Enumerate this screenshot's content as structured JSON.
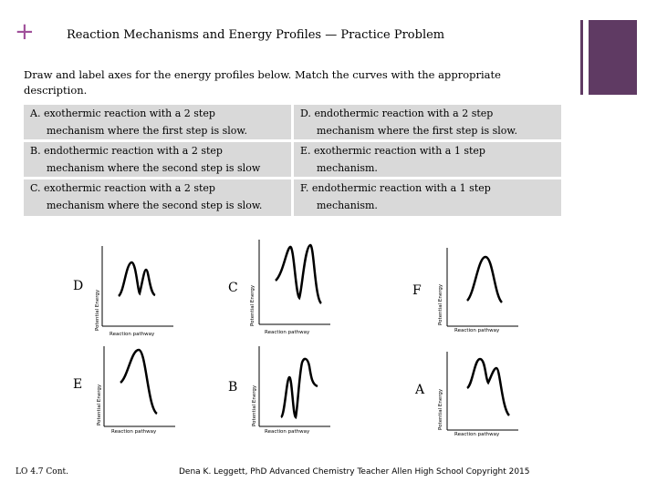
{
  "header": {
    "plus_glyph": "+",
    "title": "Reaction Mechanisms and Energy Profiles — Practice Problem"
  },
  "instructions": "Draw and label axes for the energy profiles below.  Match the curves with the appropriate description.",
  "descriptions": [
    {
      "letter": "A.",
      "line1": "exothermic reaction with a 2 step",
      "line2": "mechanism where the first step is slow."
    },
    {
      "letter": "B.",
      "line1": "endothermic reaction with a 2 step",
      "line2": "mechanism where the second step is slow"
    },
    {
      "letter": "C.",
      "line1": "exothermic reaction with a 2 step",
      "line2": "mechanism where the second step is slow."
    },
    {
      "letter": "D.",
      "line1": "endothermic reaction with a 2 step",
      "line2": "mechanism where the first step is slow."
    },
    {
      "letter": "E.",
      "line1": "exothermic reaction with a 1 step",
      "line2": "mechanism."
    },
    {
      "letter": "F.",
      "line1": "endothermic reaction with a 1 step",
      "line2": "mechanism."
    }
  ],
  "graphs": [
    {
      "letter": "D",
      "ylabel": "Potential Energy",
      "xlabel": "Reaction pathway"
    },
    {
      "letter": "C",
      "ylabel": "Potential Energy",
      "xlabel": "Reaction pathway"
    },
    {
      "letter": "F",
      "ylabel": "Potential Energy",
      "xlabel": "Reaction pathway"
    },
    {
      "letter": "E",
      "ylabel": "Potential Energy",
      "xlabel": "Reaction pathway"
    },
    {
      "letter": "B",
      "ylabel": "Potential Energy",
      "xlabel": "Reaction pathway"
    },
    {
      "letter": "A",
      "ylabel": "Potential Energy",
      "xlabel": "Reaction pathway"
    }
  ],
  "footer": {
    "left": "LO 4.7  Cont.",
    "center": "Dena K. Leggett, PhD Advanced Chemistry Teacher Allen High School Copyright 2015"
  },
  "colors": {
    "accent": "#a0509a",
    "deco": "#5f3a63",
    "cell_bg": "#d9d9d9"
  }
}
